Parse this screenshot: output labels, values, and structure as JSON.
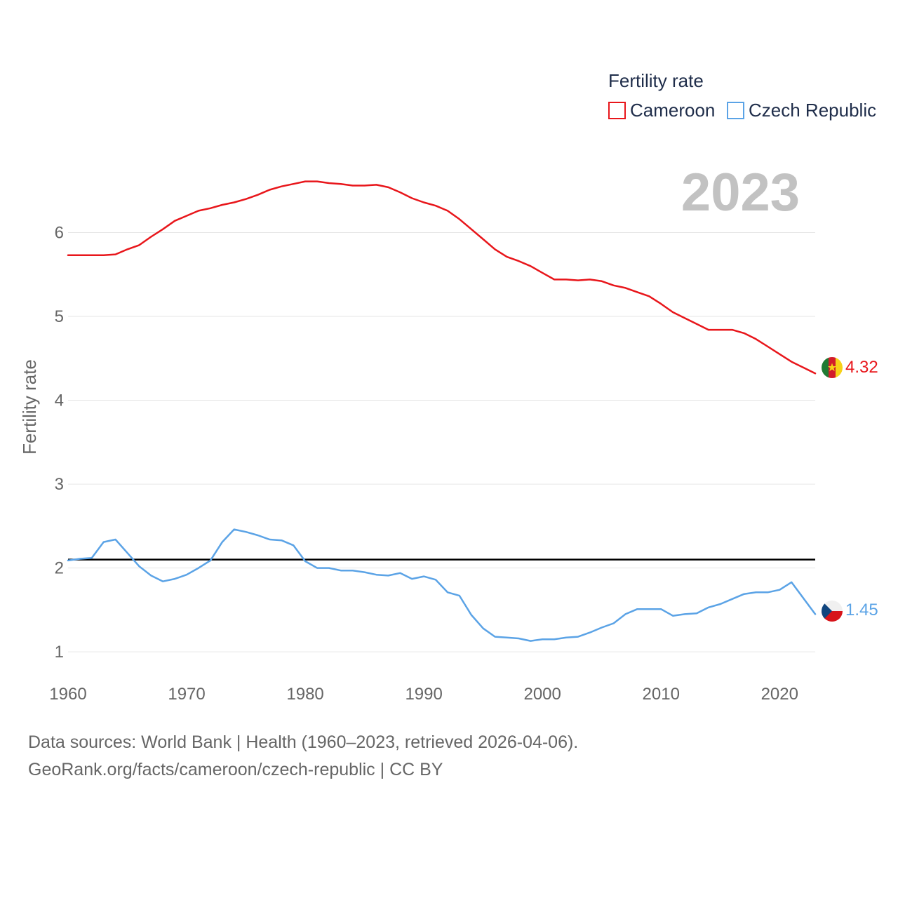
{
  "chart_data": {
    "type": "line",
    "title": "Fertility rate",
    "ylabel": "Fertility rate",
    "xlabel": "",
    "year_label": "2023",
    "xlim": [
      1960,
      2023
    ],
    "ylim": [
      0.7,
      7.1
    ],
    "x_ticks": [
      "1960",
      "1970",
      "1980",
      "1990",
      "2000",
      "2010",
      "2020"
    ],
    "y_ticks": [
      "1",
      "2",
      "3",
      "4",
      "5",
      "6"
    ],
    "reference_line": 2.1,
    "x": [
      1960,
      1961,
      1962,
      1963,
      1964,
      1965,
      1966,
      1967,
      1968,
      1969,
      1970,
      1971,
      1972,
      1973,
      1974,
      1975,
      1976,
      1977,
      1978,
      1979,
      1980,
      1981,
      1982,
      1983,
      1984,
      1985,
      1986,
      1987,
      1988,
      1989,
      1990,
      1991,
      1992,
      1993,
      1994,
      1995,
      1996,
      1997,
      1998,
      1999,
      2000,
      2001,
      2002,
      2003,
      2004,
      2005,
      2006,
      2007,
      2008,
      2009,
      2010,
      2011,
      2012,
      2013,
      2014,
      2015,
      2016,
      2017,
      2018,
      2019,
      2020,
      2021,
      2022,
      2023
    ],
    "series": [
      {
        "name": "Cameroon",
        "color": "#e8161b",
        "end_label": "4.32",
        "values": [
          5.73,
          5.73,
          5.73,
          5.73,
          5.74,
          5.8,
          5.85,
          5.95,
          6.04,
          6.14,
          6.2,
          6.26,
          6.29,
          6.33,
          6.36,
          6.4,
          6.45,
          6.51,
          6.55,
          6.58,
          6.61,
          6.61,
          6.59,
          6.58,
          6.56,
          6.56,
          6.57,
          6.54,
          6.48,
          6.41,
          6.36,
          6.32,
          6.26,
          6.16,
          6.04,
          5.92,
          5.8,
          5.71,
          5.66,
          5.6,
          5.52,
          5.44,
          5.44,
          5.43,
          5.44,
          5.42,
          5.37,
          5.34,
          5.29,
          5.24,
          5.15,
          5.05,
          4.98,
          4.91,
          4.84,
          4.84,
          4.84,
          4.8,
          4.73,
          4.64,
          4.55,
          4.46,
          4.39,
          4.32
        ]
      },
      {
        "name": "Czech Republic",
        "color": "#5ba3e6",
        "end_label": "1.45",
        "values": [
          2.09,
          2.11,
          2.12,
          2.31,
          2.34,
          2.18,
          2.02,
          1.91,
          1.84,
          1.87,
          1.92,
          2.0,
          2.09,
          2.31,
          2.46,
          2.43,
          2.39,
          2.34,
          2.33,
          2.27,
          2.08,
          2.0,
          2.0,
          1.97,
          1.97,
          1.95,
          1.92,
          1.91,
          1.94,
          1.87,
          1.9,
          1.86,
          1.71,
          1.67,
          1.44,
          1.28,
          1.18,
          1.17,
          1.16,
          1.13,
          1.15,
          1.15,
          1.17,
          1.18,
          1.23,
          1.29,
          1.34,
          1.45,
          1.51,
          1.51,
          1.51,
          1.43,
          1.45,
          1.46,
          1.53,
          1.57,
          1.63,
          1.69,
          1.71,
          1.71,
          1.74,
          1.83,
          1.64,
          1.45
        ]
      }
    ],
    "legend_position": "top-right"
  },
  "footer": {
    "sources": "Data sources: World Bank | Health (1960–2023, retrieved 2026-04-06).",
    "credit": "GeoRank.org/facts/cameroon/czech-republic | CC BY"
  },
  "colors": {
    "grid": "#e6e6e6",
    "reference": "#000000",
    "cameroon_flag_green": "#1f7a33",
    "cameroon_flag_red": "#d21c2b",
    "cameroon_flag_yellow": "#f7d117",
    "czech_flag_white": "#f0f0f0",
    "czech_flag_red": "#d7141a",
    "czech_flag_blue": "#11457e"
  }
}
